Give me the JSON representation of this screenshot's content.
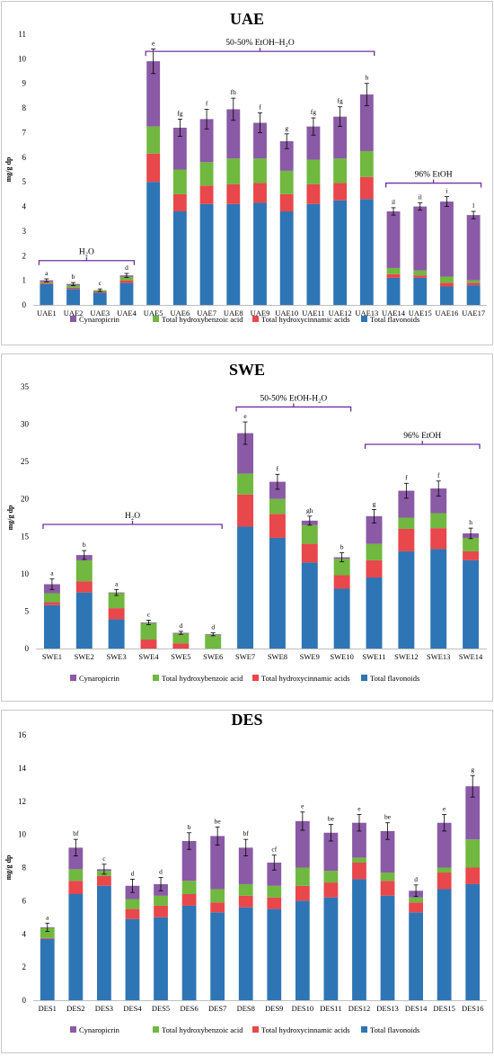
{
  "colors": {
    "flavonoids": "#2e75b6",
    "hydroxycinnamic": "#e8474b",
    "hydroxybenzoic": "#70b83f",
    "cynaropicrin": "#8a5aa6",
    "bracket": "#7030a0",
    "axis": "#000000",
    "frame": "#c8c8c8"
  },
  "legend": [
    {
      "key": "cynaropicrin",
      "label": "Cynaropicrin"
    },
    {
      "key": "hydroxybenzoic",
      "label": "Total hydroxybenzoic acid"
    },
    {
      "key": "hydroxycinnamic",
      "label": "Total hydroxycinnamic acids"
    },
    {
      "key": "flavonoids",
      "label": "Total flavonoids"
    }
  ],
  "chart_data": [
    {
      "type": "bar",
      "stacked": true,
      "title": "UAE",
      "ylabel": "mg/g dp",
      "ylim": [
        0,
        11
      ],
      "yticks": [
        0,
        1,
        2,
        3,
        4,
        5,
        6,
        7,
        8,
        9,
        10,
        11
      ],
      "categories": [
        "UAE1",
        "UAE2",
        "UAE3",
        "UAE4",
        "UAE5",
        "UAE6",
        "UAE7",
        "UAE8",
        "UAE9",
        "UAE10",
        "UAE11",
        "UAE12",
        "UAE13",
        "UAE14",
        "UAE15",
        "UAE16",
        "UAE17"
      ],
      "series": [
        {
          "name": "Total flavonoids",
          "key": "flavonoids",
          "values": [
            0.85,
            0.65,
            0.5,
            0.9,
            5.0,
            3.8,
            4.1,
            4.1,
            4.15,
            3.8,
            4.1,
            4.25,
            4.3,
            1.1,
            1.1,
            0.75,
            0.8
          ]
        },
        {
          "name": "Total hydroxycinnamic acids",
          "key": "hydroxycinnamic",
          "values": [
            0.05,
            0.05,
            0.05,
            0.1,
            1.15,
            0.7,
            0.75,
            0.8,
            0.8,
            0.7,
            0.8,
            0.7,
            0.9,
            0.15,
            0.1,
            0.15,
            0.1
          ]
        },
        {
          "name": "Total hydroxybenzoic acid",
          "key": "hydroxybenzoic",
          "values": [
            0.05,
            0.1,
            0.05,
            0.15,
            1.1,
            1.0,
            0.95,
            1.05,
            1.0,
            0.95,
            1.0,
            1.0,
            1.05,
            0.25,
            0.2,
            0.25,
            0.1
          ]
        },
        {
          "name": "Cynaropicrin",
          "key": "cynaropicrin",
          "values": [
            0.05,
            0.05,
            0.0,
            0.05,
            2.65,
            1.7,
            1.75,
            2.0,
            1.45,
            1.2,
            1.35,
            1.7,
            2.3,
            2.3,
            2.6,
            3.05,
            2.65
          ]
        }
      ],
      "errors": [
        0.06,
        0.06,
        0.05,
        0.08,
        0.5,
        0.35,
        0.4,
        0.45,
        0.4,
        0.3,
        0.35,
        0.4,
        0.45,
        0.15,
        0.15,
        0.2,
        0.15
      ],
      "letters": [
        "a",
        "b",
        "c",
        "d",
        "e",
        "fg",
        "f",
        "fh",
        "f",
        "g",
        "fg",
        "fg",
        "h",
        "il",
        "il",
        "i",
        "l"
      ],
      "groups": [
        {
          "label": "H₂O",
          "from": 0,
          "to": 3,
          "y": 1.8
        },
        {
          "label": "50-50% EtOH–H₂O",
          "from": 4,
          "to": 12,
          "y": 10.3
        },
        {
          "label": "96% EtOH",
          "from": 13,
          "to": 16,
          "y": 4.95
        }
      ]
    },
    {
      "type": "bar",
      "stacked": true,
      "title": "SWE",
      "ylabel": "mg/g dp",
      "ylim": [
        0,
        35
      ],
      "yticks": [
        0,
        5,
        10,
        15,
        20,
        25,
        30,
        35
      ],
      "categories": [
        "SWE1",
        "SWE2",
        "SWE3",
        "SWE4",
        "SWE5",
        "SWE6",
        "SWE7",
        "SWE8",
        "SWE9",
        "SWE10",
        "SWE11",
        "SWE12",
        "SWE13",
        "SWE14"
      ],
      "series": [
        {
          "name": "Total flavonoids",
          "key": "flavonoids",
          "values": [
            5.8,
            7.5,
            3.9,
            0.0,
            0.0,
            0.0,
            16.3,
            14.8,
            11.5,
            8.0,
            9.5,
            13.0,
            13.3,
            11.8
          ]
        },
        {
          "name": "Total hydroxycinnamic acids",
          "key": "hydroxycinnamic",
          "values": [
            0.4,
            1.5,
            1.5,
            1.2,
            0.7,
            0.0,
            4.3,
            3.2,
            2.5,
            1.8,
            2.3,
            3.0,
            2.8,
            1.2
          ]
        },
        {
          "name": "Total hydroxybenzoic acid",
          "key": "hydroxybenzoic",
          "values": [
            1.2,
            2.8,
            2.0,
            2.2,
            1.3,
            1.8,
            2.8,
            2.0,
            2.5,
            2.2,
            2.2,
            1.5,
            2.0,
            1.8
          ]
        },
        {
          "name": "Cynaropicrin",
          "key": "cynaropicrin",
          "values": [
            1.2,
            0.7,
            0.1,
            0.1,
            0.1,
            0.1,
            5.4,
            2.3,
            0.6,
            0.2,
            3.7,
            3.6,
            3.3,
            0.6
          ]
        }
      ],
      "errors": [
        0.7,
        0.6,
        0.4,
        0.3,
        0.2,
        0.2,
        1.5,
        1.0,
        0.6,
        0.6,
        0.9,
        1.0,
        1.0,
        0.7
      ],
      "letters": [
        "a",
        "b",
        "a",
        "c",
        "d",
        "d",
        "e",
        "f",
        "gh",
        "b",
        "g",
        "f",
        "f",
        "h"
      ],
      "groups": [
        {
          "label": "H₂O",
          "from": 0,
          "to": 5,
          "y": 16.6
        },
        {
          "label": "50-50% EtOH-H₂O",
          "from": 6,
          "to": 9,
          "y": 32.3
        },
        {
          "label": "96% EtOH",
          "from": 10,
          "to": 13,
          "y": 27.3
        }
      ]
    },
    {
      "type": "bar",
      "stacked": true,
      "title": "DES",
      "ylabel": "mg/g dp",
      "ylim": [
        0,
        16
      ],
      "yticks": [
        0,
        2,
        4,
        6,
        8,
        10,
        12,
        14,
        16
      ],
      "categories": [
        "DES1",
        "DES2",
        "DES3",
        "DES4",
        "DES5",
        "DES6",
        "DES7",
        "DES8",
        "DES9",
        "DES10",
        "DES11",
        "DES12",
        "DES13",
        "DES14",
        "DES15",
        "DES16"
      ],
      "series": [
        {
          "name": "Total flavonoids",
          "key": "flavonoids",
          "values": [
            3.7,
            6.4,
            6.9,
            4.9,
            5.0,
            5.7,
            5.3,
            5.6,
            5.5,
            6.0,
            6.2,
            7.3,
            6.3,
            5.3,
            6.7,
            7.0
          ]
        },
        {
          "name": "Total hydroxycinnamic acids",
          "key": "hydroxycinnamic",
          "values": [
            0.05,
            0.8,
            0.6,
            0.6,
            0.7,
            0.7,
            0.6,
            0.7,
            0.7,
            0.9,
            0.9,
            1.0,
            0.9,
            0.6,
            1.0,
            1.0
          ]
        },
        {
          "name": "Total hydroxybenzoic acid",
          "key": "hydroxybenzoic",
          "values": [
            0.6,
            0.7,
            0.3,
            0.6,
            0.6,
            0.8,
            0.8,
            0.7,
            0.7,
            1.1,
            0.7,
            0.3,
            0.5,
            0.3,
            0.3,
            1.7
          ]
        },
        {
          "name": "Cynaropicrin",
          "key": "cynaropicrin",
          "values": [
            0.05,
            1.3,
            0.1,
            0.8,
            0.7,
            2.4,
            3.2,
            2.2,
            1.4,
            2.8,
            2.3,
            2.1,
            2.5,
            0.4,
            2.7,
            3.2
          ]
        }
      ],
      "errors": [
        0.25,
        0.5,
        0.3,
        0.4,
        0.4,
        0.5,
        0.55,
        0.5,
        0.45,
        0.55,
        0.5,
        0.5,
        0.5,
        0.35,
        0.5,
        0.65
      ],
      "letters": [
        "a",
        "bf",
        "c",
        "d",
        "d",
        "b",
        "be",
        "bf",
        "cf",
        "e",
        "be",
        "e",
        "be",
        "d",
        "e",
        "g"
      ],
      "groups": []
    }
  ]
}
